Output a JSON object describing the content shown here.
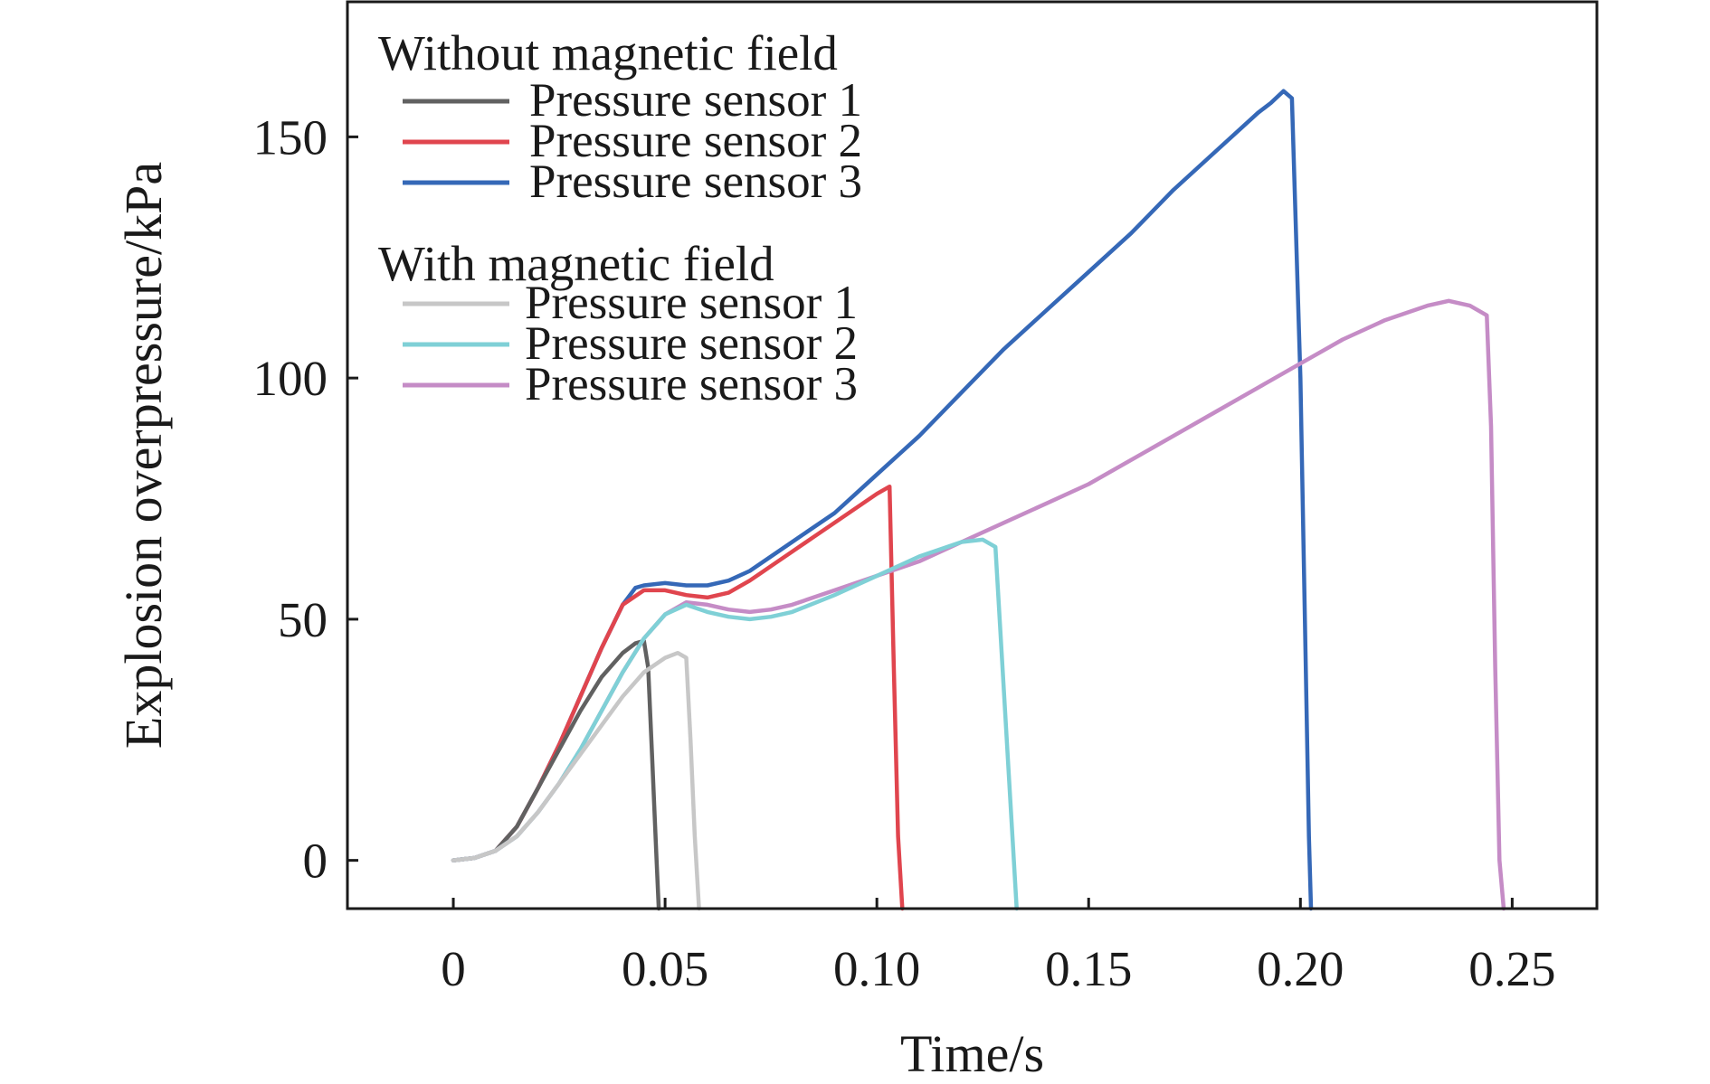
{
  "chart_data": {
    "type": "line",
    "xlabel": "Time/s",
    "ylabel": "Explosion overpressure/kPa",
    "xlim": [
      -0.025,
      0.27
    ],
    "ylim": [
      -10,
      178
    ],
    "xticks": [
      0,
      0.05,
      0.1,
      0.15,
      0.2,
      0.25
    ],
    "xtick_labels": [
      "0",
      "0.05",
      "0.10",
      "0.15",
      "0.20",
      "0.25"
    ],
    "yticks": [
      0,
      50,
      100,
      150
    ],
    "ytick_labels": [
      "0",
      "50",
      "100",
      "150"
    ],
    "grid": false,
    "legend_position": "top-left",
    "legend_groups": [
      {
        "title": "Without magnetic field",
        "entries": [
          {
            "label": "Pressure sensor 1",
            "color": "#616161"
          },
          {
            "label": "Pressure sensor 2",
            "color": "#e0454e"
          },
          {
            "label": "Pressure sensor 3",
            "color": "#3568b7"
          }
        ]
      },
      {
        "title": "With magnetic field",
        "entries": [
          {
            "label": "Pressure sensor 1",
            "color": "#c7c7c7"
          },
          {
            "label": "Pressure sensor 2",
            "color": "#7fd0d6"
          },
          {
            "label": "Pressure sensor 3",
            "color": "#c58cc6"
          }
        ]
      }
    ],
    "series": [
      {
        "group": "Without magnetic field",
        "name": "Pressure sensor 3",
        "color": "#3568b7",
        "x": [
          0,
          0.005,
          0.01,
          0.015,
          0.02,
          0.025,
          0.03,
          0.035,
          0.04,
          0.043,
          0.045,
          0.05,
          0.055,
          0.06,
          0.065,
          0.07,
          0.075,
          0.08,
          0.085,
          0.09,
          0.095,
          0.1,
          0.105,
          0.11,
          0.12,
          0.13,
          0.14,
          0.15,
          0.16,
          0.17,
          0.18,
          0.19,
          0.193,
          0.196,
          0.198,
          0.2,
          0.202,
          0.2025
        ],
        "y": [
          0,
          0.5,
          2,
          7,
          15,
          24,
          34,
          44,
          53,
          56.5,
          57,
          57.5,
          57,
          57,
          58,
          60,
          63,
          66,
          69,
          72,
          76,
          80,
          84,
          88,
          97,
          106,
          114,
          122,
          130,
          139,
          147,
          155,
          157,
          159.5,
          158,
          100,
          5,
          -10
        ]
      },
      {
        "group": "Without magnetic field",
        "name": "Pressure sensor 2",
        "color": "#e0454e",
        "x": [
          0,
          0.005,
          0.01,
          0.015,
          0.02,
          0.025,
          0.03,
          0.035,
          0.04,
          0.045,
          0.05,
          0.055,
          0.06,
          0.065,
          0.07,
          0.075,
          0.08,
          0.085,
          0.09,
          0.095,
          0.1,
          0.103,
          0.104,
          0.105,
          0.106
        ],
        "y": [
          0,
          0.5,
          2,
          7,
          15,
          24,
          34,
          44,
          53,
          56,
          56,
          55,
          54.5,
          55.5,
          58,
          61,
          64,
          67,
          70,
          73,
          76,
          77.5,
          40,
          5,
          -10
        ]
      },
      {
        "group": "Without magnetic field",
        "name": "Pressure sensor 1",
        "color": "#616161",
        "x": [
          0,
          0.005,
          0.01,
          0.015,
          0.02,
          0.025,
          0.03,
          0.035,
          0.04,
          0.043,
          0.045,
          0.046,
          0.047,
          0.048,
          0.0485
        ],
        "y": [
          0,
          0.5,
          2,
          7,
          15,
          23,
          31,
          38,
          43,
          45,
          45.5,
          40,
          20,
          0,
          -10
        ]
      },
      {
        "group": "With magnetic field",
        "name": "Pressure sensor 3",
        "color": "#c58cc6",
        "x": [
          0,
          0.005,
          0.01,
          0.015,
          0.02,
          0.025,
          0.03,
          0.035,
          0.04,
          0.045,
          0.05,
          0.055,
          0.06,
          0.065,
          0.07,
          0.075,
          0.08,
          0.09,
          0.1,
          0.11,
          0.12,
          0.13,
          0.14,
          0.15,
          0.16,
          0.17,
          0.18,
          0.19,
          0.2,
          0.21,
          0.22,
          0.23,
          0.235,
          0.24,
          0.244,
          0.245,
          0.246,
          0.247,
          0.248
        ],
        "y": [
          0,
          0.5,
          2,
          5,
          10,
          16,
          23,
          31,
          39,
          46,
          51,
          53.5,
          53,
          52,
          51.5,
          52,
          53,
          56,
          59,
          62,
          66,
          70,
          74,
          78,
          83,
          88,
          93,
          98,
          103,
          108,
          112,
          115,
          116,
          115,
          113,
          90,
          40,
          0,
          -10
        ]
      },
      {
        "group": "With magnetic field",
        "name": "Pressure sensor 2",
        "color": "#7fd0d6",
        "x": [
          0,
          0.005,
          0.01,
          0.015,
          0.02,
          0.025,
          0.03,
          0.035,
          0.04,
          0.045,
          0.05,
          0.055,
          0.06,
          0.065,
          0.07,
          0.075,
          0.08,
          0.09,
          0.1,
          0.11,
          0.12,
          0.125,
          0.128,
          0.13,
          0.132,
          0.133
        ],
        "y": [
          0,
          0.5,
          2,
          5,
          10,
          16,
          23,
          31,
          39,
          46,
          51,
          53,
          51.5,
          50.5,
          50,
          50.5,
          51.5,
          55,
          59,
          63,
          66,
          66.5,
          65,
          35,
          5,
          -10
        ]
      },
      {
        "group": "With magnetic field",
        "name": "Pressure sensor 1",
        "color": "#c7c7c7",
        "x": [
          0,
          0.005,
          0.01,
          0.015,
          0.02,
          0.025,
          0.03,
          0.035,
          0.04,
          0.045,
          0.05,
          0.053,
          0.055,
          0.056,
          0.057,
          0.058
        ],
        "y": [
          0,
          0.5,
          2,
          5,
          10,
          16,
          22,
          28,
          34,
          39,
          42,
          43,
          42,
          25,
          5,
          -10
        ]
      }
    ]
  }
}
